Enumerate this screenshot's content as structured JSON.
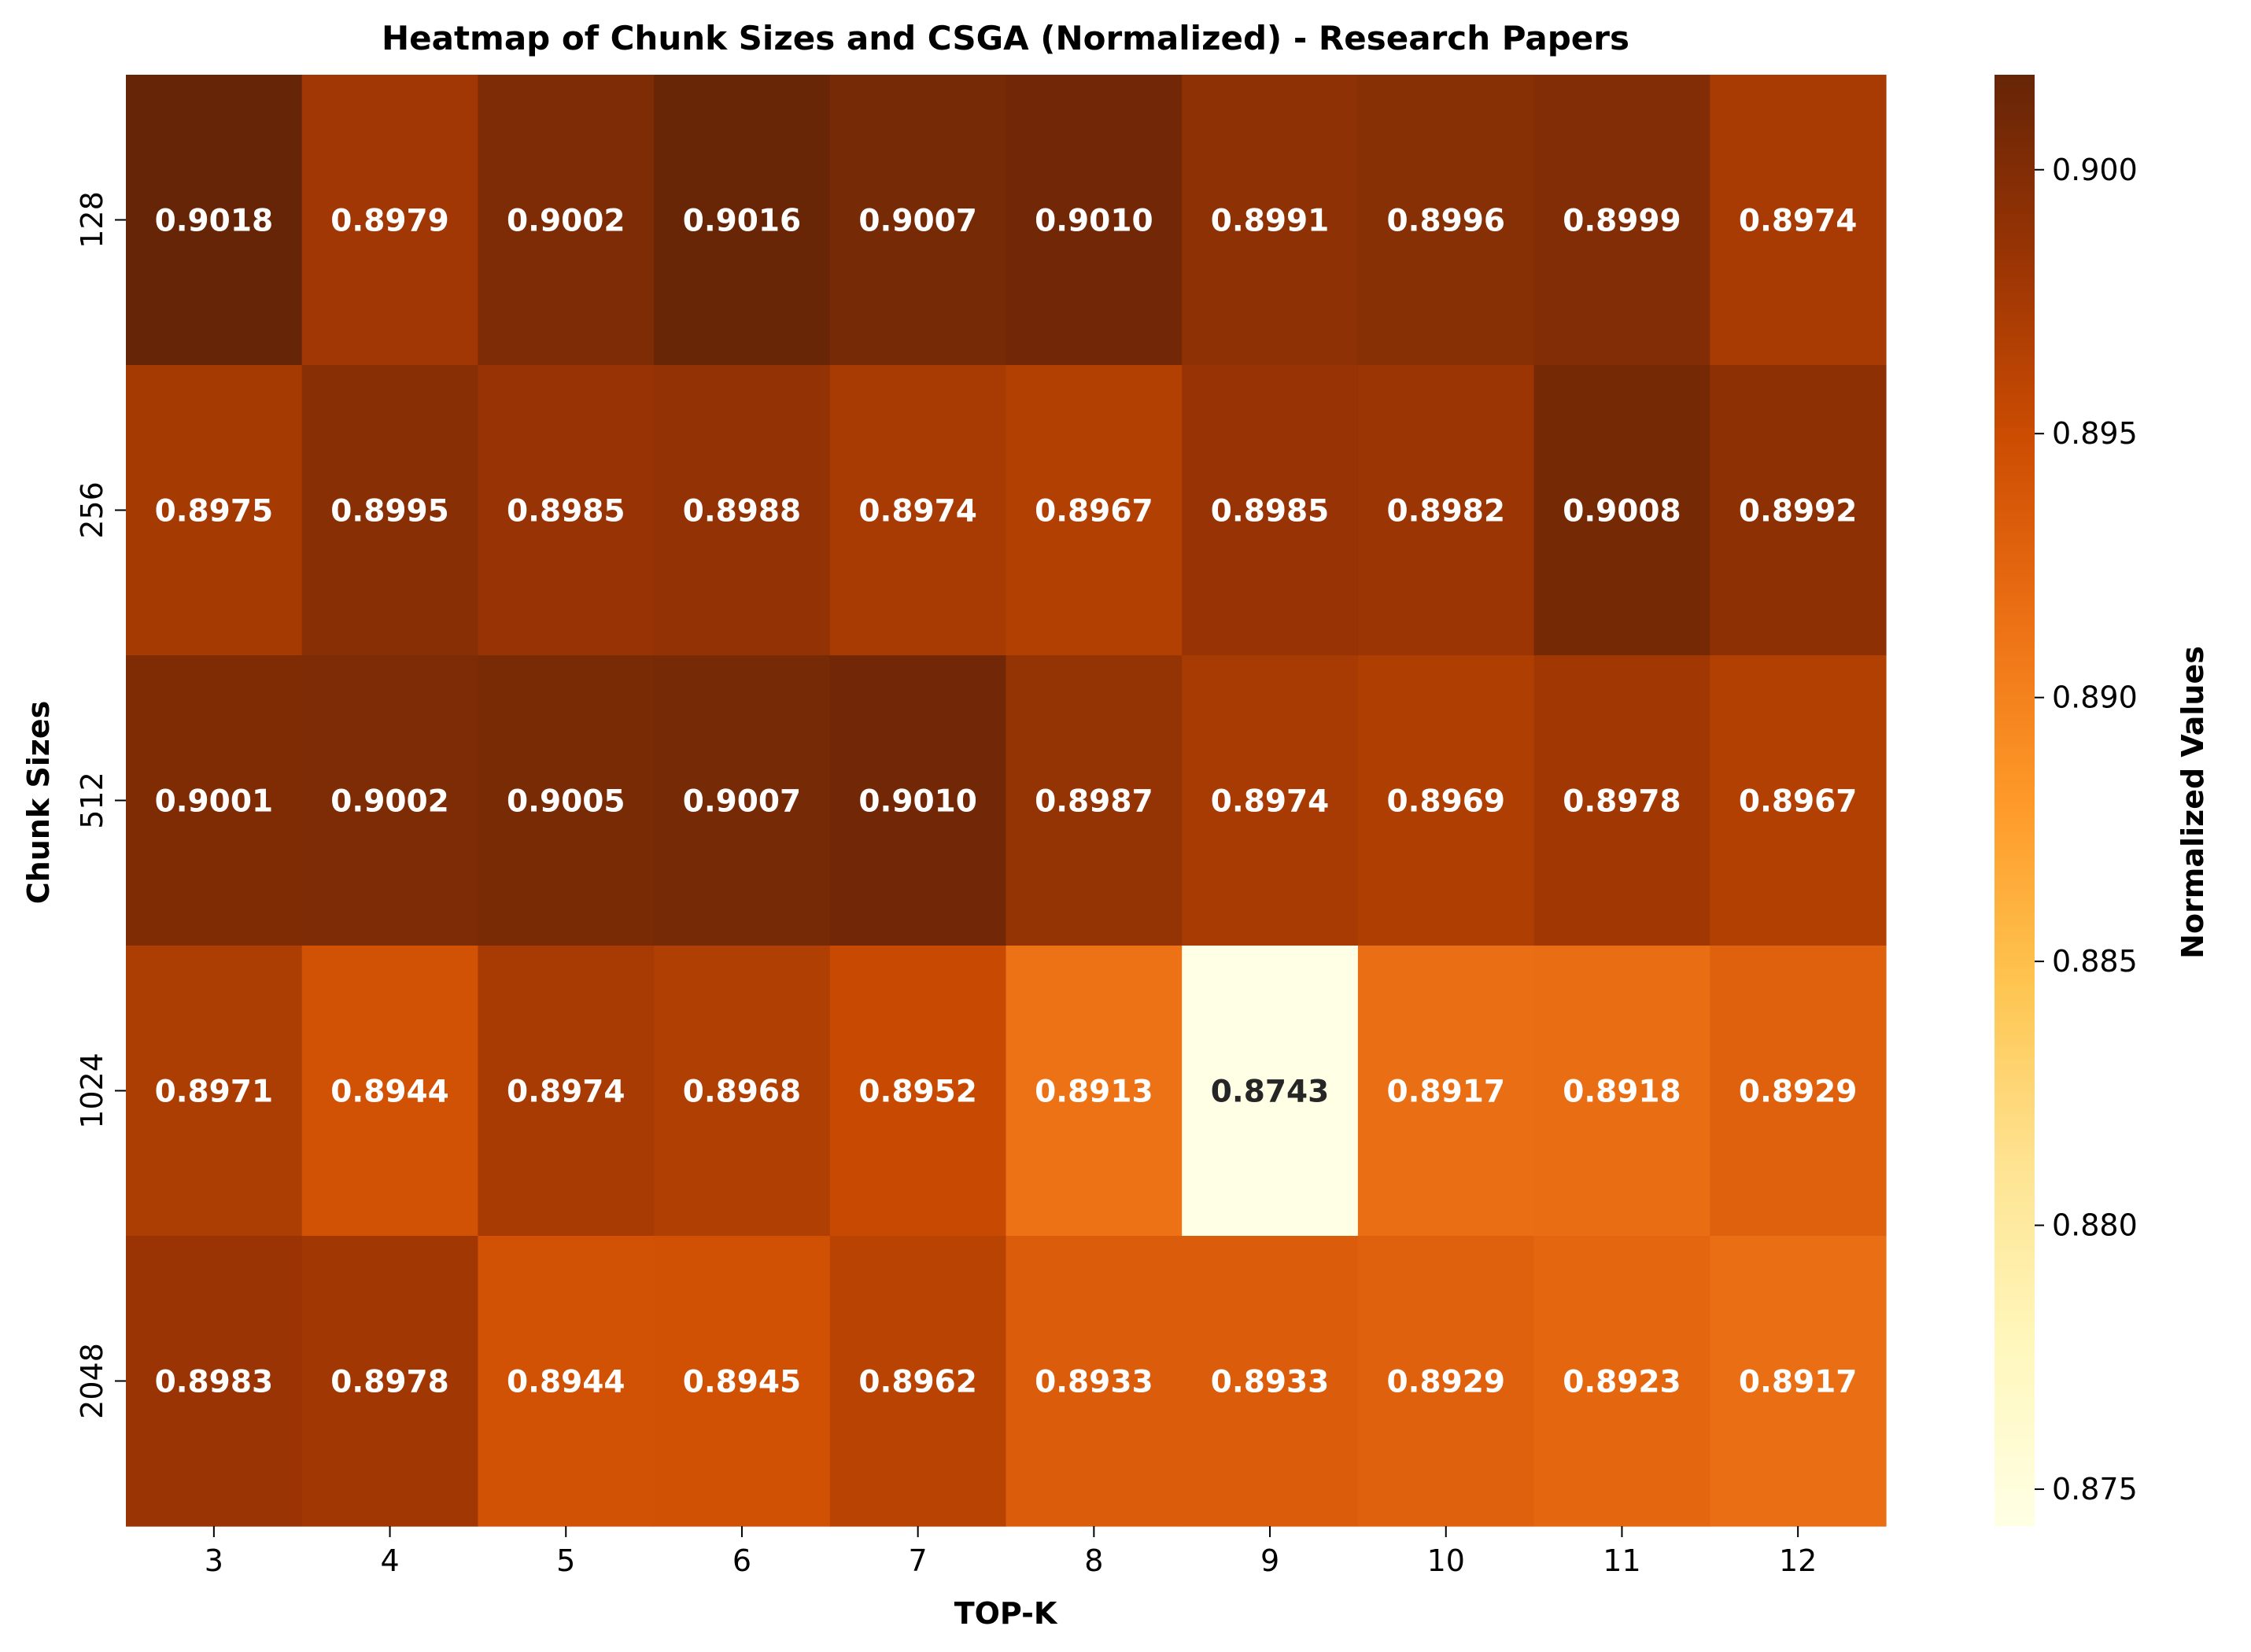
{
  "chart_data": {
    "type": "heatmap",
    "title": "Heatmap of Chunk Sizes and CSGA (Normalized) - Research Papers",
    "xlabel": "TOP-K",
    "ylabel": "Chunk Sizes",
    "x_categories": [
      "3",
      "4",
      "5",
      "6",
      "7",
      "8",
      "9",
      "10",
      "11",
      "12"
    ],
    "y_categories": [
      "128",
      "256",
      "512",
      "1024",
      "2048"
    ],
    "values": [
      [
        0.9018,
        0.8979,
        0.9002,
        0.9016,
        0.9007,
        0.901,
        0.8991,
        0.8996,
        0.8999,
        0.8974
      ],
      [
        0.8975,
        0.8995,
        0.8985,
        0.8988,
        0.8974,
        0.8967,
        0.8985,
        0.8982,
        0.9008,
        0.8992
      ],
      [
        0.9001,
        0.9002,
        0.9005,
        0.9007,
        0.901,
        0.8987,
        0.8974,
        0.8969,
        0.8978,
        0.8967
      ],
      [
        0.8971,
        0.8944,
        0.8974,
        0.8968,
        0.8952,
        0.8913,
        0.8743,
        0.8917,
        0.8918,
        0.8929
      ],
      [
        0.8983,
        0.8978,
        0.8944,
        0.8945,
        0.8962,
        0.8933,
        0.8933,
        0.8929,
        0.8923,
        0.8917
      ]
    ],
    "value_format_decimals": 4,
    "colormap": "YlOrBr",
    "colorbar": {
      "label": "Normalized Values",
      "vmin": 0.8743,
      "vmax": 0.9018,
      "ticks": [
        "0.875",
        "0.880",
        "0.885",
        "0.890",
        "0.895",
        "0.900"
      ],
      "tick_values": [
        0.875,
        0.88,
        0.885,
        0.89,
        0.895,
        0.9
      ]
    },
    "colors": [
      "#ffffe5",
      "#fff7bc",
      "#fee391",
      "#fec44f",
      "#fe9929",
      "#ec7014",
      "#cc4c02",
      "#993404",
      "#662506"
    ],
    "grid": false,
    "legend": "colorbar-right"
  }
}
